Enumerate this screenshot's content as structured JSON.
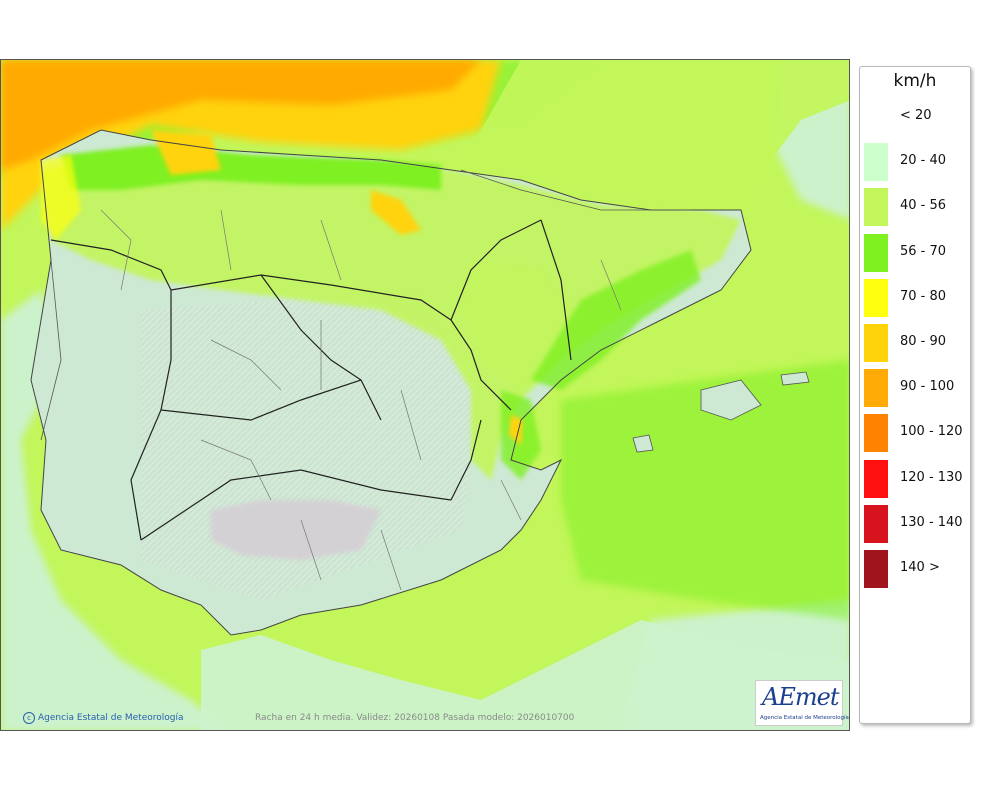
{
  "legend": {
    "unit": "km/h",
    "items": [
      {
        "label": "< 20",
        "color": ""
      },
      {
        "label": "20 - 40",
        "color": "#ccffcc"
      },
      {
        "label": "40 - 56",
        "color": "#c2f65a"
      },
      {
        "label": "56 - 70",
        "color": "#7ff020"
      },
      {
        "label": "70 - 80",
        "color": "#ffff10"
      },
      {
        "label": "80 - 90",
        "color": "#ffd30a"
      },
      {
        "label": "90 - 100",
        "color": "#ffaa05"
      },
      {
        "label": "100 - 120",
        "color": "#ff8200"
      },
      {
        "label": "120 - 130",
        "color": "#ff1010"
      },
      {
        "label": "130 - 140",
        "color": "#d7141e"
      },
      {
        "label": "140 >",
        "color": "#a0141e"
      }
    ]
  },
  "map": {
    "credit": "Agencia Estatal de Meteorología",
    "caption": "Racha en 24 h media. Validez: 20260108 Pasada modelo: 2026010700",
    "logo": {
      "text": "AEmet",
      "subtitle": "Agencia Estatal de Meteorología"
    }
  },
  "colors": {
    "sea_low": "#ccf2cc",
    "sea_mid": "#c2f65a",
    "atlantic_high": "#ffd30a",
    "atlantic_highest": "#ffaa05",
    "land_low": "#cde9d3",
    "high_relief": "#d5cfd5"
  }
}
